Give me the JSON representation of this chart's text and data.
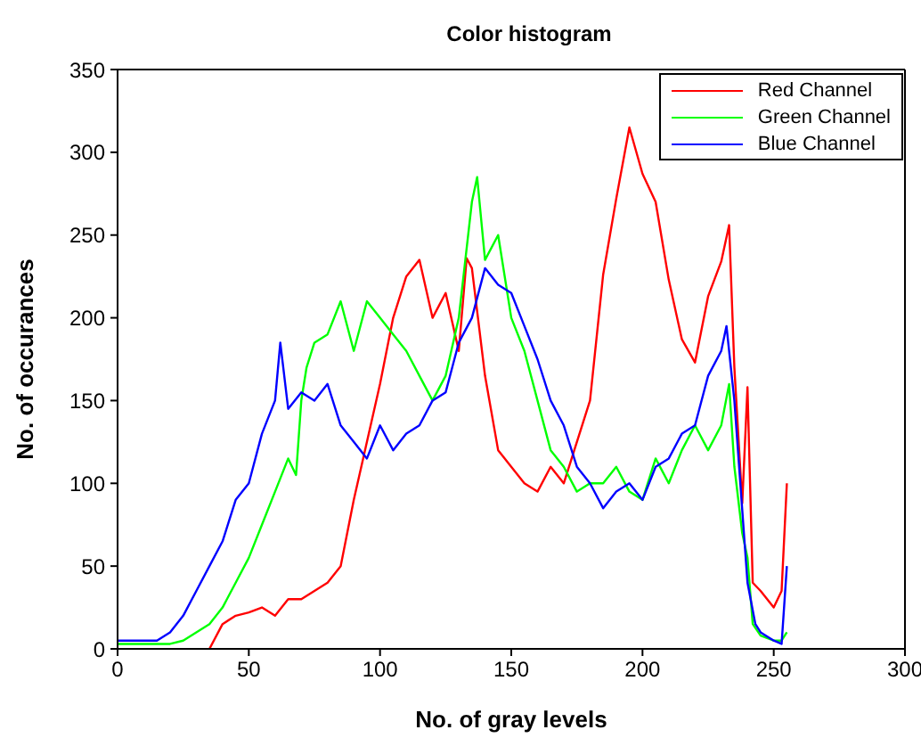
{
  "chart_data": {
    "type": "line",
    "title": "Color histogram",
    "xlabel": "No. of gray levels",
    "ylabel": "No. of occurances",
    "xlim": [
      0,
      300
    ],
    "xticks": [
      0,
      50,
      100,
      150,
      200,
      250,
      300
    ],
    "ylim": [
      0,
      350
    ],
    "yticks": [
      0,
      50,
      100,
      150,
      200,
      250,
      300,
      350
    ],
    "grid": false,
    "legend": "top right",
    "marker": "none",
    "line_style": "solid",
    "series": [
      {
        "name": "Red Channel",
        "color": "#ff0000",
        "x": [
          35,
          40,
          45,
          50,
          55,
          60,
          65,
          70,
          75,
          80,
          85,
          90,
          95,
          100,
          105,
          110,
          115,
          120,
          125,
          130,
          133,
          135,
          140,
          145,
          150,
          155,
          160,
          165,
          170,
          175,
          180,
          185,
          190,
          195,
          200,
          205,
          210,
          215,
          220,
          225,
          230,
          233,
          235,
          238,
          240,
          242,
          245,
          250,
          253,
          255
        ],
        "values": [
          0,
          15,
          20,
          22,
          25,
          20,
          30,
          30,
          35,
          40,
          50,
          90,
          125,
          160,
          200,
          225,
          235,
          200,
          215,
          180,
          236,
          230,
          165,
          120,
          110,
          100,
          95,
          110,
          100,
          125,
          150,
          226,
          272,
          315,
          287,
          270,
          223,
          187,
          173,
          213,
          234,
          256,
          170,
          88,
          158,
          40,
          35,
          25,
          35,
          100
        ]
      },
      {
        "name": "Green Channel",
        "color": "#00ff00",
        "x": [
          0,
          10,
          20,
          25,
          30,
          35,
          40,
          45,
          50,
          55,
          60,
          65,
          68,
          70,
          72,
          75,
          80,
          85,
          90,
          95,
          100,
          105,
          110,
          115,
          120,
          125,
          130,
          135,
          137,
          140,
          145,
          150,
          155,
          160,
          165,
          170,
          175,
          180,
          185,
          190,
          195,
          200,
          205,
          210,
          215,
          220,
          225,
          230,
          233,
          235,
          238,
          240,
          242,
          245,
          250,
          253,
          255
        ],
        "values": [
          3,
          3,
          3,
          5,
          10,
          15,
          25,
          40,
          55,
          75,
          95,
          115,
          105,
          150,
          170,
          185,
          190,
          210,
          180,
          210,
          200,
          190,
          180,
          165,
          150,
          165,
          200,
          270,
          285,
          235,
          250,
          200,
          180,
          150,
          120,
          110,
          95,
          100,
          100,
          110,
          95,
          90,
          115,
          100,
          120,
          135,
          120,
          135,
          160,
          110,
          70,
          55,
          15,
          8,
          5,
          5,
          10
        ]
      },
      {
        "name": "Blue Channel",
        "color": "#0000ff",
        "x": [
          0,
          10,
          15,
          20,
          25,
          30,
          35,
          40,
          45,
          50,
          55,
          60,
          62,
          65,
          70,
          75,
          80,
          85,
          90,
          95,
          100,
          105,
          110,
          115,
          120,
          125,
          130,
          135,
          140,
          145,
          150,
          155,
          160,
          165,
          170,
          175,
          180,
          185,
          190,
          195,
          200,
          205,
          210,
          215,
          220,
          225,
          230,
          232,
          235,
          240,
          243,
          245,
          250,
          253,
          255
        ],
        "values": [
          5,
          5,
          5,
          10,
          20,
          35,
          50,
          65,
          90,
          100,
          130,
          150,
          185,
          145,
          155,
          150,
          160,
          135,
          125,
          115,
          135,
          120,
          130,
          135,
          150,
          155,
          185,
          200,
          230,
          220,
          215,
          195,
          175,
          150,
          135,
          110,
          100,
          85,
          95,
          100,
          90,
          110,
          115,
          130,
          135,
          165,
          180,
          195,
          150,
          40,
          15,
          10,
          5,
          3,
          50
        ]
      }
    ]
  }
}
